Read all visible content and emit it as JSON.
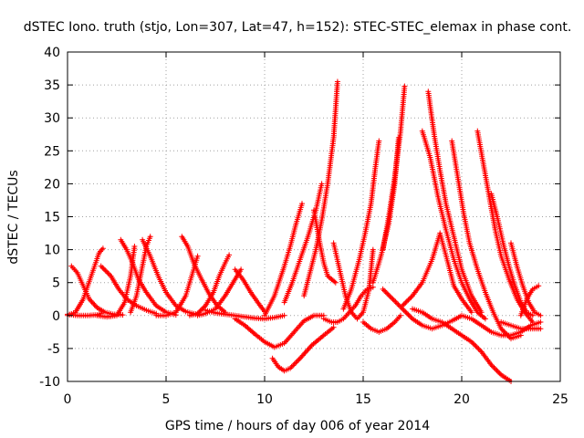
{
  "chart_data": {
    "type": "scatter",
    "title": "dSTEC Iono. truth (stjo, Lon=307, Lat=47, h=152): STEC-STEC_elemax in phase cont.",
    "xlabel": "GPS time / hours of day 006 of year 2014",
    "ylabel": "dSTEC  / TECUs",
    "xlim": [
      0,
      25
    ],
    "ylim": [
      -10,
      40
    ],
    "xticks": [
      0,
      5,
      10,
      15,
      20,
      25
    ],
    "yticks": [
      -10,
      -5,
      0,
      5,
      10,
      15,
      20,
      25,
      30,
      35,
      40
    ],
    "grid": true,
    "marker": "+",
    "color": "#ff0000",
    "series": [
      {
        "x": [
          0.0,
          0.5,
          1.0,
          1.5,
          1.7
        ],
        "y": [
          0.2,
          0.0,
          0.0,
          0.1,
          0.3
        ]
      },
      {
        "x": [
          0.2,
          0.5,
          0.8,
          1.1,
          1.5,
          1.9,
          2.3,
          2.8
        ],
        "y": [
          7.5,
          6.5,
          4.5,
          2.5,
          1.2,
          0.5,
          0.2,
          0.1
        ]
      },
      {
        "x": [
          0.0,
          0.4,
          0.8,
          1.2,
          1.6,
          1.8
        ],
        "y": [
          0.0,
          0.5,
          2.5,
          6.0,
          9.5,
          10.2
        ]
      },
      {
        "x": [
          1.5,
          2.0,
          2.5,
          2.9,
          3.2,
          3.4
        ],
        "y": [
          0.0,
          -0.2,
          0.0,
          2.0,
          6.0,
          10.5
        ]
      },
      {
        "x": [
          1.7,
          2.2,
          2.6,
          3.0,
          3.5,
          4.0,
          4.5
        ],
        "y": [
          7.5,
          6.0,
          4.0,
          2.5,
          1.5,
          0.8,
          0.3
        ]
      },
      {
        "x": [
          2.7,
          3.0,
          3.3,
          3.6,
          4.0,
          4.5,
          5.0,
          5.5
        ],
        "y": [
          11.5,
          10.0,
          8.0,
          5.5,
          3.5,
          1.5,
          0.5,
          0.1
        ]
      },
      {
        "x": [
          3.2,
          3.5,
          3.8,
          4.0,
          4.2
        ],
        "y": [
          0.5,
          3.0,
          7.5,
          10.5,
          12.0
        ]
      },
      {
        "x": [
          3.8,
          4.2,
          4.6,
          5.0,
          5.5,
          6.0,
          6.5
        ],
        "y": [
          11.5,
          9.0,
          6.0,
          3.5,
          1.5,
          0.6,
          0.2
        ]
      },
      {
        "x": [
          4.5,
          5.0,
          5.5,
          6.0,
          6.3,
          6.6
        ],
        "y": [
          0.0,
          0.0,
          0.5,
          3.0,
          6.0,
          9.0
        ]
      },
      {
        "x": [
          5.8,
          6.1,
          6.4,
          6.8,
          7.2,
          7.6,
          8.0
        ],
        "y": [
          12.0,
          10.5,
          8.0,
          5.5,
          3.2,
          1.5,
          0.5
        ]
      },
      {
        "x": [
          6.2,
          6.6,
          7.0,
          7.4,
          7.7,
          8.0,
          8.2
        ],
        "y": [
          0.0,
          0.3,
          1.5,
          3.5,
          6.0,
          8.0,
          9.2
        ]
      },
      {
        "x": [
          6.6,
          7.0,
          7.5,
          8.0,
          8.5,
          8.8
        ],
        "y": [
          0.0,
          0.3,
          1.0,
          3.0,
          5.5,
          7.0
        ]
      },
      {
        "x": [
          8.5,
          8.9,
          9.3,
          9.7,
          10.0
        ],
        "y": [
          7.0,
          5.5,
          3.5,
          1.8,
          0.6
        ]
      },
      {
        "x": [
          7.0,
          7.5,
          8.0,
          8.5,
          9.0,
          9.5,
          10.0,
          10.5,
          11.0
        ],
        "y": [
          0.8,
          0.4,
          0.2,
          0.0,
          -0.2,
          -0.4,
          -0.5,
          -0.3,
          0.0
        ]
      },
      {
        "x": [
          8.5,
          9.0,
          9.5,
          10.0,
          10.5,
          11.0,
          11.5,
          12.0,
          12.5,
          13.0
        ],
        "y": [
          -0.5,
          -1.5,
          -2.8,
          -4.0,
          -4.8,
          -4.2,
          -2.5,
          -0.8,
          0.0,
          0.0
        ]
      },
      {
        "x": [
          10.4,
          10.7,
          11.0,
          11.3,
          11.8,
          12.4,
          13.0,
          13.5
        ],
        "y": [
          -6.5,
          -7.8,
          -8.4,
          -8.0,
          -6.5,
          -4.5,
          -3.0,
          -1.8
        ]
      },
      {
        "x": [
          10.0,
          10.5,
          11.0,
          11.3,
          11.6,
          11.9
        ],
        "y": [
          0.0,
          3.0,
          7.5,
          10.5,
          14.0,
          17.0
        ]
      },
      {
        "x": [
          11.0,
          11.4,
          11.8,
          12.2,
          12.6,
          12.9
        ],
        "y": [
          2.0,
          5.0,
          8.5,
          12.0,
          16.0,
          20.0
        ]
      },
      {
        "x": [
          12.0,
          12.3,
          12.6,
          12.9,
          13.2,
          13.5,
          13.7
        ],
        "y": [
          3.0,
          6.5,
          10.0,
          14.5,
          20.0,
          27.0,
          35.5
        ]
      },
      {
        "x": [
          12.5,
          12.8,
          13.0,
          13.2,
          13.4,
          13.6
        ],
        "y": [
          16.0,
          11.0,
          8.0,
          6.0,
          5.5,
          5.0
        ]
      },
      {
        "x": [
          13.0,
          13.4,
          13.7,
          14.0,
          14.3,
          14.6,
          14.9,
          15.2,
          15.5
        ],
        "y": [
          -0.5,
          -1.0,
          -1.0,
          -0.5,
          0.5,
          1.5,
          3.0,
          4.0,
          4.3
        ]
      },
      {
        "x": [
          13.5,
          13.8,
          14.1,
          14.4,
          14.7,
          15.0,
          15.3,
          15.5
        ],
        "y": [
          11.0,
          7.0,
          3.0,
          0.5,
          -0.5,
          0.5,
          4.0,
          10.0
        ]
      },
      {
        "x": [
          14.0,
          14.4,
          14.8,
          15.1,
          15.4,
          15.6,
          15.8
        ],
        "y": [
          1.0,
          4.0,
          8.5,
          12.5,
          17.0,
          22.0,
          26.5
        ]
      },
      {
        "x": [
          15.0,
          15.4,
          15.8,
          16.2,
          16.6,
          16.9
        ],
        "y": [
          -1.0,
          -2.0,
          -2.5,
          -2.0,
          -1.0,
          0.0
        ]
      },
      {
        "x": [
          15.5,
          15.9,
          16.3,
          16.6,
          16.8
        ],
        "y": [
          5.0,
          9.0,
          14.0,
          20.0,
          27.0
        ]
      },
      {
        "x": [
          16.0,
          16.3,
          16.6,
          16.9,
          17.1
        ],
        "y": [
          10.0,
          15.0,
          21.0,
          28.0,
          34.8
        ]
      },
      {
        "x": [
          16.0,
          16.5,
          17.0,
          17.5,
          18.0,
          18.5,
          19.0,
          19.5,
          20.0
        ],
        "y": [
          4.0,
          2.5,
          1.0,
          -0.5,
          -1.5,
          -2.0,
          -1.5,
          -0.8,
          0.0
        ]
      },
      {
        "x": [
          17.0,
          17.5,
          18.0,
          18.5,
          18.9,
          19.3,
          19.6,
          20.0,
          20.5
        ],
        "y": [
          1.5,
          3.0,
          5.0,
          8.5,
          12.5,
          8.0,
          4.5,
          2.5,
          0.5
        ]
      },
      {
        "x": [
          18.3,
          18.6,
          18.9,
          19.2,
          19.6,
          20.0,
          20.5,
          21.0
        ],
        "y": [
          34.0,
          27.5,
          22.0,
          17.0,
          12.0,
          7.0,
          3.0,
          0.5
        ]
      },
      {
        "x": [
          18.0,
          18.4,
          18.8,
          19.2,
          19.6,
          20.0,
          20.4,
          20.8,
          21.2
        ],
        "y": [
          28.0,
          24.0,
          18.0,
          13.0,
          8.5,
          5.0,
          2.5,
          0.5,
          -0.5
        ]
      },
      {
        "x": [
          17.5,
          18.0,
          18.5,
          19.0,
          19.5,
          20.0,
          20.5,
          21.0,
          21.5,
          22.0,
          22.5
        ],
        "y": [
          1.0,
          0.5,
          -0.5,
          -1.0,
          -2.0,
          -3.0,
          -4.0,
          -5.5,
          -7.5,
          -9.0,
          -10.0
        ]
      },
      {
        "x": [
          19.5,
          19.8,
          20.1,
          20.4,
          20.8,
          21.2,
          21.6,
          22.0,
          22.5,
          23.0
        ],
        "y": [
          26.5,
          21.0,
          15.5,
          11.0,
          7.0,
          3.5,
          0.5,
          -2.0,
          -3.5,
          -3.0
        ]
      },
      {
        "x": [
          20.8,
          21.1,
          21.4,
          21.7,
          22.0,
          22.4,
          22.8,
          23.2,
          23.6
        ],
        "y": [
          28.0,
          23.0,
          18.0,
          13.0,
          9.0,
          5.5,
          2.5,
          0.5,
          -1.0
        ]
      },
      {
        "x": [
          21.5,
          21.8,
          22.1,
          22.4,
          22.7,
          23.0,
          23.3,
          23.6
        ],
        "y": [
          18.5,
          15.0,
          11.0,
          7.5,
          4.5,
          2.0,
          0.5,
          0.0
        ]
      },
      {
        "x": [
          22.5,
          22.8,
          23.1,
          23.4,
          23.7,
          24.0
        ],
        "y": [
          11.0,
          7.5,
          4.5,
          2.0,
          0.5,
          0.0
        ]
      },
      {
        "x": [
          22.0,
          22.5,
          23.0,
          23.5,
          24.0
        ],
        "y": [
          -1.0,
          -1.5,
          -2.0,
          -2.0,
          -2.0
        ]
      },
      {
        "x": [
          23.0,
          23.3,
          23.6,
          23.9
        ],
        "y": [
          0.0,
          2.5,
          4.0,
          4.5
        ]
      },
      {
        "x": [
          20.0,
          20.5,
          21.0,
          21.5,
          22.0,
          22.5,
          23.0,
          23.5,
          24.0
        ],
        "y": [
          0.0,
          -0.5,
          -1.5,
          -2.5,
          -3.0,
          -3.0,
          -2.5,
          -1.5,
          -1.0
        ]
      }
    ]
  }
}
